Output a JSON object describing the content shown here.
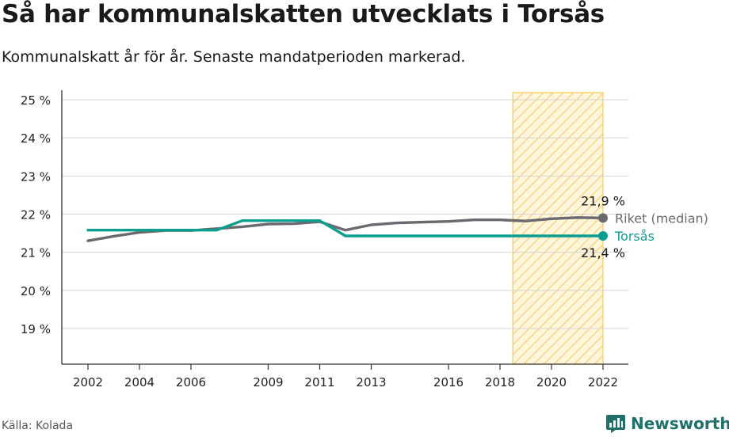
{
  "title": "Så har kommunalskatten utvecklats i Torsås",
  "subtitle": "Kommunalskatt år för år. Senaste mandatperioden markerad.",
  "source": "Källa: Kolada",
  "brand": "Newsworthy",
  "colors": {
    "riket": "#6b6970",
    "torsas": "#0a9e8f",
    "highlight": "#f9c74f",
    "grid": "#d4d4d4",
    "axis": "#333333"
  },
  "chart_data": {
    "type": "line",
    "title": "Så har kommunalskatten utvecklats i Torsås",
    "subtitle": "Kommunalskatt år för år. Senaste mandatperioden markerad.",
    "xlabel": "",
    "ylabel": "",
    "xlim": [
      2002,
      2022
    ],
    "ylim": [
      18.2,
      25.2
    ],
    "x_ticks": [
      2002,
      2004,
      2006,
      2009,
      2011,
      2013,
      2016,
      2018,
      2020,
      2022
    ],
    "y_ticks": [
      19,
      20,
      21,
      22,
      23,
      24,
      25
    ],
    "y_tick_labels": [
      "19 %",
      "20 %",
      "21 %",
      "22 %",
      "23 %",
      "24 %",
      "25 %"
    ],
    "grid": true,
    "highlight_period": {
      "from": 2018.5,
      "to": 2022
    },
    "x": [
      2002,
      2003,
      2004,
      2005,
      2006,
      2007,
      2008,
      2009,
      2010,
      2011,
      2012,
      2013,
      2014,
      2015,
      2016,
      2017,
      2018,
      2019,
      2020,
      2021,
      2022
    ],
    "series": [
      {
        "name": "Riket (median)",
        "color_key": "riket",
        "values": [
          21.3,
          21.42,
          21.52,
          21.57,
          21.57,
          21.62,
          21.67,
          21.74,
          21.75,
          21.8,
          21.58,
          21.72,
          21.77,
          21.79,
          21.81,
          21.85,
          21.85,
          21.82,
          21.88,
          21.91,
          21.9
        ],
        "end_label": "21,9 %"
      },
      {
        "name": "Torsås",
        "color_key": "torsas",
        "values": [
          21.58,
          21.58,
          21.58,
          21.58,
          21.58,
          21.58,
          21.83,
          21.83,
          21.83,
          21.83,
          21.43,
          21.43,
          21.43,
          21.43,
          21.43,
          21.43,
          21.43,
          21.43,
          21.43,
          21.43,
          21.43
        ],
        "end_label": "21,4 %"
      }
    ]
  }
}
